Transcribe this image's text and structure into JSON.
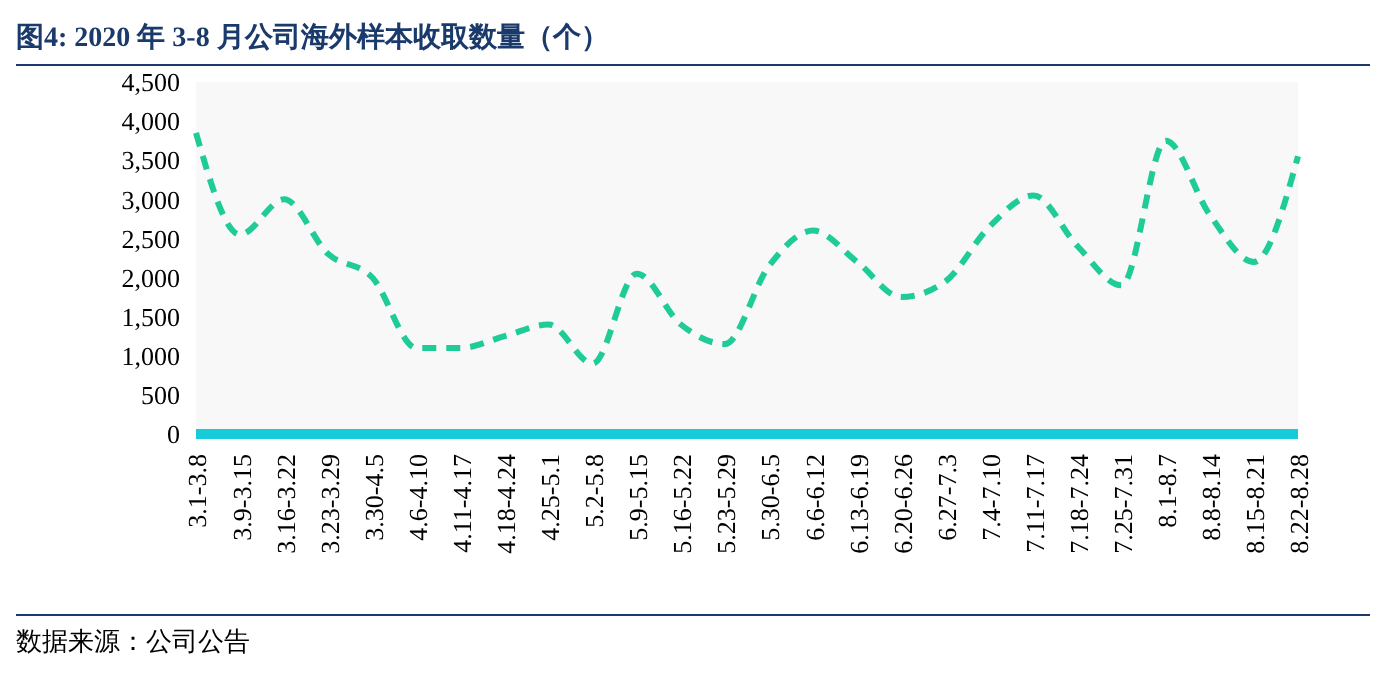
{
  "chart_data": {
    "type": "line",
    "title": "图4:  2020 年 3-8 月公司海外样本收取数量（个）",
    "categories": [
      "3.1-3.8",
      "3.9-3.15",
      "3.16-3.22",
      "3.23-3.29",
      "3.30-4.5",
      "4.6-4.10",
      "4.11-4.17",
      "4.18-4.24",
      "4.25-5.1",
      "5.2-5.8",
      "5.9-5.15",
      "5.16-5.22",
      "5.23-5.29",
      "5.30-6.5",
      "6.6-6.12",
      "6.13-6.19",
      "6.20-6.26",
      "6.27-7.3",
      "7.4-7.10",
      "7.11-7.17",
      "7.18-7.24",
      "7.25-7.31",
      "8.1-8.7",
      "8.8-8.14",
      "8.15-8.21",
      "8.22-8.28"
    ],
    "series": [
      {
        "color": "#1fcc98",
        "line_style": "dashed",
        "values": [
          3850,
          2550,
          3000,
          2300,
          2000,
          1100,
          1100,
          1250,
          1400,
          900,
          2050,
          1400,
          1150,
          2150,
          2600,
          2200,
          1750,
          1950,
          2650,
          3050,
          2400,
          1900,
          3750,
          2800,
          2200,
          3550
        ]
      }
    ],
    "ylim": [
      0,
      4500
    ],
    "yticks": [
      0,
      500,
      {
        "value": 1000,
        "label": "1,000"
      },
      {
        "value": 1500,
        "label": "1,500"
      },
      {
        "value": 2000,
        "label": "2,000"
      },
      {
        "value": 2500,
        "label": "2,500"
      },
      {
        "value": 3000,
        "label": "3,000"
      },
      {
        "value": 3500,
        "label": "3,500"
      },
      {
        "value": 4000,
        "label": "4,000"
      },
      {
        "value": 4500,
        "label": "4,500"
      }
    ],
    "grid": false,
    "legend": false,
    "marker": "none",
    "annotations": [
      "数据来源：公司公告"
    ]
  }
}
